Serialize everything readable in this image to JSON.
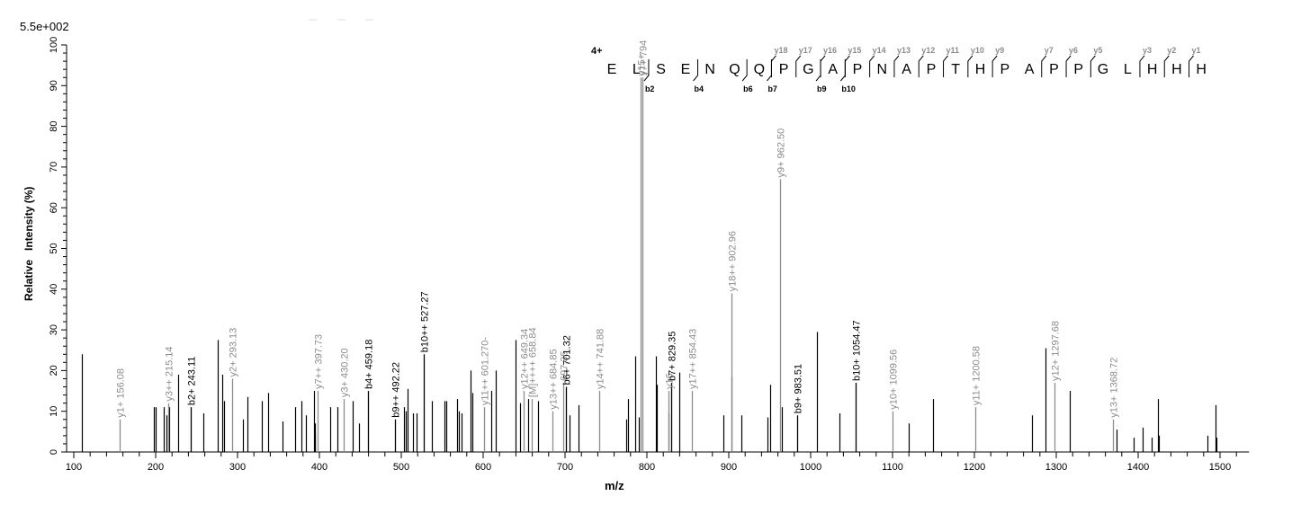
{
  "header": {
    "scale_label": "5.5e+002",
    "charge_label": "4+"
  },
  "axes": {
    "ylabel": "Relative   Intensity (%)",
    "xlabel": "m/z"
  },
  "peptide": {
    "sequence": [
      "E",
      "L",
      "S",
      "E",
      "N",
      "Q",
      "Q",
      "P",
      "G",
      "A",
      "P",
      "N",
      "A",
      "P",
      "T",
      "H",
      "P",
      "A",
      "P",
      "P",
      "G",
      "L",
      "H",
      "H",
      "H"
    ],
    "b_ions": [
      {
        "after": 1,
        "label": "b2"
      },
      {
        "after": 3,
        "label": "b4"
      },
      {
        "after": 5,
        "label": "b6"
      },
      {
        "after": 6,
        "label": "b7"
      },
      {
        "after": 8,
        "label": "b9"
      },
      {
        "after": 9,
        "label": "b10"
      }
    ],
    "y_ions": [
      {
        "before": 7,
        "label": "y18"
      },
      {
        "before": 8,
        "label": "y17"
      },
      {
        "before": 9,
        "label": "y16"
      },
      {
        "before": 10,
        "label": "y15"
      },
      {
        "before": 11,
        "label": "y14"
      },
      {
        "before": 12,
        "label": "y13"
      },
      {
        "before": 13,
        "label": "y12"
      },
      {
        "before": 14,
        "label": "y11"
      },
      {
        "before": 15,
        "label": "y10"
      },
      {
        "before": 16,
        "label": "y9"
      },
      {
        "before": 18,
        "label": "y7"
      },
      {
        "before": 19,
        "label": "y6"
      },
      {
        "before": 20,
        "label": "y5"
      },
      {
        "before": 22,
        "label": "y3"
      },
      {
        "before": 23,
        "label": "y2"
      },
      {
        "before": 24,
        "label": "y1"
      }
    ]
  },
  "chart_data": {
    "type": "bar",
    "title": "",
    "xlabel": "m/z",
    "ylabel": "Relative Intensity (%)",
    "xlim": [
      95,
      1530
    ],
    "ylim": [
      0,
      100
    ],
    "base_peak_intensity": "5.5e+002",
    "x_ticks": [
      100,
      200,
      300,
      400,
      500,
      600,
      700,
      800,
      900,
      1000,
      1100,
      1200,
      1300,
      1400,
      1500
    ],
    "y_ticks": [
      0,
      10,
      20,
      30,
      40,
      50,
      60,
      70,
      80,
      90,
      100
    ],
    "annotated_peaks": [
      {
        "mz": 156.08,
        "intensity": 8,
        "label": "y1+ 156.08",
        "type": "y"
      },
      {
        "mz": 215.14,
        "intensity": 12,
        "label": "y3++ 215.14",
        "type": "y"
      },
      {
        "mz": 243.11,
        "intensity": 11,
        "label": "b2+ 243.11",
        "type": "b"
      },
      {
        "mz": 293.13,
        "intensity": 18,
        "label": "y2+ 293.13",
        "type": "y"
      },
      {
        "mz": 397.73,
        "intensity": 15,
        "label": "y7++ 397.73",
        "type": "y"
      },
      {
        "mz": 430.2,
        "intensity": 13,
        "label": "y3+ 430.20",
        "type": "y"
      },
      {
        "mz": 459.18,
        "intensity": 15,
        "label": "b4+ 459.18",
        "type": "b"
      },
      {
        "mz": 492.22,
        "intensity": 8,
        "label": "b9++ 492.22",
        "type": "b"
      },
      {
        "mz": 527.27,
        "intensity": 24,
        "label": "b10++ 527.27",
        "type": "b"
      },
      {
        "mz": 601.27,
        "intensity": 11,
        "label": "y11++ 601.270-",
        "type": "y"
      },
      {
        "mz": 649.34,
        "intensity": 15,
        "label": "y12++ 649.34",
        "type": "y"
      },
      {
        "mz": 658.84,
        "intensity": 13,
        "label": "[M]++++ 658.84",
        "type": "y"
      },
      {
        "mz": 684.85,
        "intensity": 10,
        "label": "y13++ 684.85",
        "type": "y"
      },
      {
        "mz": 697.35,
        "intensity": 17,
        "label": "697.35",
        "type": "y"
      },
      {
        "mz": 701.32,
        "intensity": 16,
        "label": "b6+ 701.32",
        "type": "b"
      },
      {
        "mz": 741.88,
        "intensity": 15,
        "label": "y14++ 741.88",
        "type": "y"
      },
      {
        "mz": 792.0,
        "intensity": 92,
        "label": "y15+",
        "type": "y"
      },
      {
        "mz": 794.0,
        "intensity": 92,
        "label": "y7+ 794",
        "type": "y"
      },
      {
        "mz": 826.0,
        "intensity": 15,
        "label": "y16",
        "type": "y"
      },
      {
        "mz": 829.35,
        "intensity": 17,
        "label": "b7+ 829.35",
        "type": "b"
      },
      {
        "mz": 854.43,
        "intensity": 15,
        "label": "y17++ 854.43",
        "type": "y"
      },
      {
        "mz": 902.96,
        "intensity": 39,
        "label": "y18++ 902.96",
        "type": "y"
      },
      {
        "mz": 962.5,
        "intensity": 67,
        "label": "y9+ 962.50",
        "type": "y"
      },
      {
        "mz": 983.51,
        "intensity": 9,
        "label": "b9+ 983.51",
        "type": "b"
      },
      {
        "mz": 1054.47,
        "intensity": 17,
        "label": "b10+ 1054.47",
        "type": "b"
      },
      {
        "mz": 1099.56,
        "intensity": 10,
        "label": "y10+ 1099.56",
        "type": "y"
      },
      {
        "mz": 1200.58,
        "intensity": 11,
        "label": "y11+ 1200.58",
        "type": "y"
      },
      {
        "mz": 1297.68,
        "intensity": 17,
        "label": "y12+ 1297.68",
        "type": "y"
      },
      {
        "mz": 1368.72,
        "intensity": 8,
        "label": "y13+ 1368.72",
        "type": "y"
      }
    ],
    "unannotated_peaks": [
      [
        110,
        24
      ],
      [
        198,
        11
      ],
      [
        200,
        11
      ],
      [
        210,
        11
      ],
      [
        213,
        9
      ],
      [
        217,
        11
      ],
      [
        227,
        19
      ],
      [
        258,
        9.5
      ],
      [
        276,
        27.5
      ],
      [
        281,
        19
      ],
      [
        283,
        12.5
      ],
      [
        307,
        8
      ],
      [
        312,
        13.5
      ],
      [
        330,
        12.5
      ],
      [
        337,
        14.5
      ],
      [
        355,
        7.5
      ],
      [
        370,
        11
      ],
      [
        378,
        12.5
      ],
      [
        384,
        9
      ],
      [
        393,
        15
      ],
      [
        394,
        7
      ],
      [
        395,
        4.5
      ],
      [
        413,
        11
      ],
      [
        422,
        11
      ],
      [
        441,
        12.5
      ],
      [
        448,
        7
      ],
      [
        503,
        11
      ],
      [
        506,
        10
      ],
      [
        508,
        15.5
      ],
      [
        514,
        9.5
      ],
      [
        519,
        9.5
      ],
      [
        537,
        12.5
      ],
      [
        553,
        12.5
      ],
      [
        555,
        12.5
      ],
      [
        568,
        13
      ],
      [
        570,
        10
      ],
      [
        574,
        9.5
      ],
      [
        585,
        20
      ],
      [
        587,
        14.5
      ],
      [
        610,
        15
      ],
      [
        615,
        20
      ],
      [
        640,
        27.5
      ],
      [
        645,
        12
      ],
      [
        655,
        13
      ],
      [
        667,
        12.5
      ],
      [
        705,
        9
      ],
      [
        717,
        11.5
      ],
      [
        775,
        8
      ],
      [
        777,
        13
      ],
      [
        786,
        23.5
      ],
      [
        790,
        8.5
      ],
      [
        811,
        23.5
      ],
      [
        812,
        16.5
      ],
      [
        826,
        9.5
      ],
      [
        840,
        19.5
      ],
      [
        893,
        9
      ],
      [
        903,
        18.5
      ],
      [
        915,
        9
      ],
      [
        947,
        8.5
      ],
      [
        951,
        16.5
      ],
      [
        965,
        11
      ],
      [
        1008,
        29.5
      ],
      [
        1035,
        9.5
      ],
      [
        1120,
        7
      ],
      [
        1149,
        13
      ],
      [
        1270,
        9
      ],
      [
        1287,
        25.5
      ],
      [
        1316,
        15
      ],
      [
        1374,
        5.5
      ],
      [
        1395,
        3.5
      ],
      [
        1406,
        6
      ],
      [
        1416,
        3.5
      ],
      [
        1424,
        13
      ],
      [
        1425,
        4
      ],
      [
        1485,
        4
      ],
      [
        1494,
        11.5
      ],
      [
        1496,
        3.5
      ]
    ],
    "colors": {
      "b_ion": "#000000",
      "y_ion": "#8c8c8c",
      "unannotated": "#000000",
      "axis": "#000000"
    }
  }
}
